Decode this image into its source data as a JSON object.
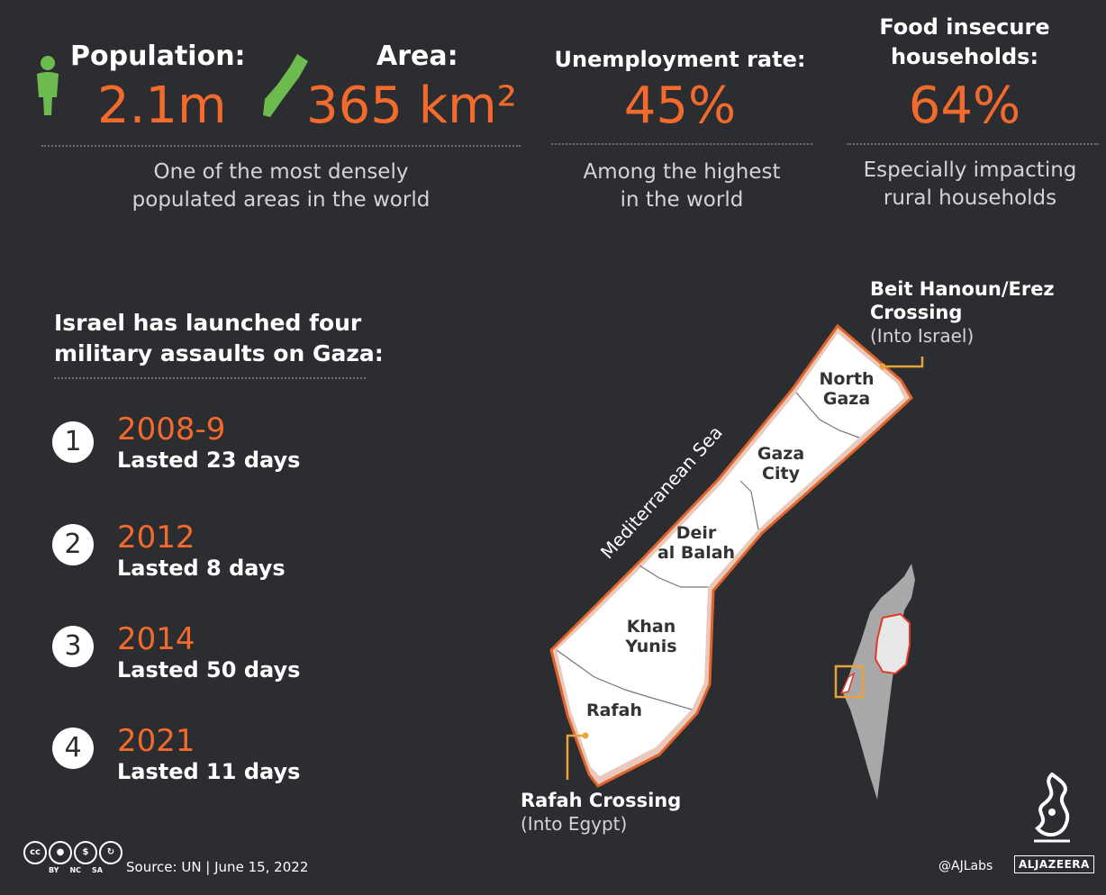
{
  "stats": {
    "population": {
      "label": "Population:",
      "value": "2.1m"
    },
    "area": {
      "label": "Area:",
      "value": "365 km²"
    },
    "pop_area_desc": [
      "One of the most densely",
      "populated areas in the world"
    ],
    "unemployment": {
      "label": "Unemployment rate:",
      "value": "45%",
      "desc": [
        "Among the highest",
        "in the world"
      ]
    },
    "food": {
      "label": [
        "Food insecure",
        "households:"
      ],
      "value": "64%",
      "desc": [
        "Especially impacting",
        "rural households"
      ]
    }
  },
  "assaults": {
    "title": [
      "Israel has launched four",
      "military assaults on Gaza:"
    ],
    "items": [
      {
        "num": "1",
        "year": "2008-9",
        "duration": "Lasted 23 days"
      },
      {
        "num": "2",
        "year": "2012",
        "duration": "Lasted 8 days"
      },
      {
        "num": "3",
        "year": "2014",
        "duration": "Lasted 50 days"
      },
      {
        "num": "4",
        "year": "2021",
        "duration": "Lasted 11 days"
      }
    ]
  },
  "map": {
    "sea_label": "Mediterranean Sea",
    "regions": {
      "north_gaza": [
        "North",
        "Gaza"
      ],
      "gaza_city": [
        "Gaza",
        "City"
      ],
      "deir_al_balah": [
        "Deir",
        "al Balah"
      ],
      "khan_yunis": [
        "Khan",
        "Yunis"
      ],
      "rafah": "Rafah"
    },
    "erez": {
      "title": [
        "Beit Hanoun/Erez",
        "Crossing"
      ],
      "sub": "(Into Israel)"
    },
    "rafah_crossing": {
      "title": "Rafah Crossing",
      "sub": "(Into Egypt)"
    }
  },
  "colors": {
    "accent": "#f26a2c",
    "background": "#2b2d31",
    "connector": "#e8a43a",
    "icon_green": "#6dbb4f"
  },
  "footer": {
    "license_icons": [
      "cc",
      "by",
      "nc",
      "sa"
    ],
    "license_labels": [
      "BY",
      "NC",
      "SA"
    ],
    "source": "Source: UN | June 15, 2022",
    "handle": "@AJLabs",
    "brand": "ALJAZEERA"
  }
}
